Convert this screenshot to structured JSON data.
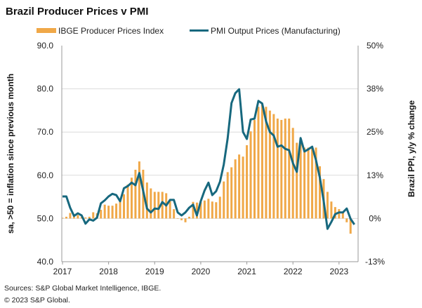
{
  "chart_data": {
    "type": "bar+line",
    "title": "Brazil Producer Prices v PMI",
    "ylabel_left": "sa, >50 = inflation since previous month",
    "ylabel_right": "Brazil PPI, y/y % change",
    "ylim_left": [
      40,
      90
    ],
    "ylim_right": [
      -12.5,
      50
    ],
    "yticks_left": [
      "90.0",
      "80.0",
      "70.0",
      "60.0",
      "50.0",
      "40.0"
    ],
    "yticks_right": [
      "50%",
      "38%",
      "25%",
      "13%",
      "0%",
      "-13%"
    ],
    "xticks": [
      "2017",
      "2018",
      "2019",
      "2020",
      "2021",
      "2022",
      "2023"
    ],
    "x_start": "2017-01",
    "grid": true,
    "legend_position": "top",
    "colors": {
      "bars": "#f0a848",
      "line": "#17687e"
    },
    "series": [
      {
        "name": "IBGE Producer Prices Index",
        "type": "bar",
        "axis": "right",
        "frequency": "monthly",
        "values": [
          0.2,
          0.5,
          1.6,
          1.0,
          1.0,
          0.5,
          0.3,
          0.5,
          1.8,
          1.5,
          2.5,
          4.0,
          3.7,
          3.7,
          4.3,
          5.4,
          7.0,
          9.8,
          11.8,
          14.1,
          16.5,
          14.1,
          10.4,
          8.7,
          7.7,
          7.7,
          7.7,
          7.3,
          5.0,
          2.7,
          0.0,
          -0.5,
          -1.1,
          0.5,
          4.8,
          4.6,
          4.7,
          5.2,
          5.7,
          4.9,
          4.7,
          6.3,
          10.7,
          13.4,
          14.8,
          17.1,
          18.5,
          17.9,
          21.2,
          25.2,
          28.5,
          32.3,
          33.0,
          32.3,
          31.2,
          30.2,
          28.9,
          28.5,
          28.9,
          28.9,
          26.2,
          21.9,
          22.9,
          20.5,
          20.5,
          20.5,
          20.5,
          15.1,
          11.4,
          7.7,
          4.9,
          3.3,
          2.7,
          1.7,
          -1.1,
          -4.4
        ]
      },
      {
        "name": "PMI Output Prices (Manufacturing)",
        "type": "line",
        "axis": "left",
        "frequency": "monthly",
        "values": [
          55.1,
          55.1,
          52.5,
          50.6,
          51.2,
          50.7,
          48.8,
          49.8,
          49.5,
          50.2,
          53.5,
          54.2,
          55.1,
          55.7,
          55.4,
          54.0,
          57.0,
          57.5,
          58.3,
          57.7,
          60.5,
          56.4,
          52.3,
          51.4,
          52.3,
          52.2,
          53.8,
          53.0,
          54.3,
          54.3,
          51.4,
          50.7,
          51.4,
          52.5,
          53.2,
          50.7,
          54.0,
          56.5,
          58.3,
          55.4,
          56.3,
          58.5,
          62.5,
          68.5,
          76.7,
          79.0,
          79.9,
          70.0,
          68.4,
          72.9,
          73.1,
          77.2,
          76.6,
          72.5,
          70.0,
          69.2,
          66.6,
          66.9,
          66.1,
          65.8,
          62.8,
          60.8,
          68.6,
          65.5,
          66.0,
          66.6,
          63.5,
          59.5,
          54.0,
          47.6,
          49.2,
          51.0,
          51.4,
          51.4,
          52.3,
          49.9,
          48.6
        ]
      }
    ]
  },
  "footer": {
    "sources": "Sources: S&P Global Market Intelligence, IBGE.",
    "copyright": "© 2023 S&P Global."
  }
}
